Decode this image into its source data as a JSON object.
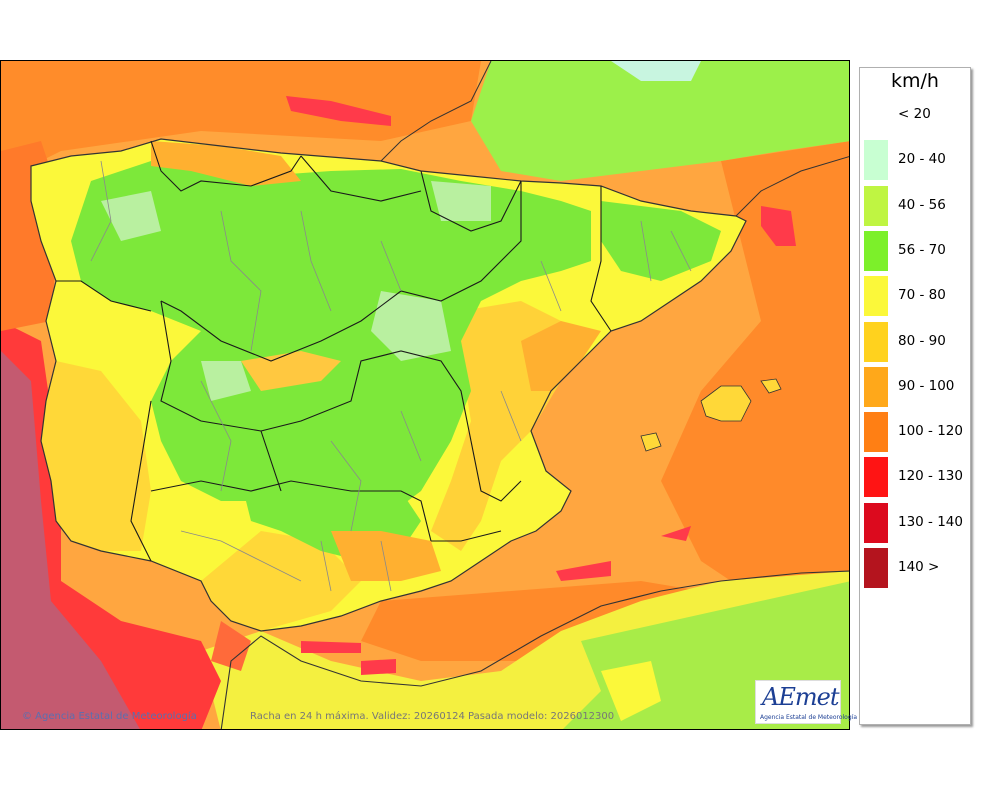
{
  "map": {
    "caption": "Racha en 24 h máxima. Validez: 20260124 Pasada modelo: 2026012300",
    "copyright": "© Agencia Estatal de Meteorología",
    "region": "Iberian Peninsula and Balearic Islands"
  },
  "legend": {
    "unit": "km/h",
    "items": [
      {
        "label": "< 20",
        "color": "#ffffff"
      },
      {
        "label": "20 - 40",
        "color": "#c8ffd2"
      },
      {
        "label": "40 - 56",
        "color": "#bff542"
      },
      {
        "label": "56 - 70",
        "color": "#7cf02a"
      },
      {
        "label": "70 - 80",
        "color": "#fbf83a"
      },
      {
        "label": "80 - 90",
        "color": "#ffd21e"
      },
      {
        "label": "90 - 100",
        "color": "#ffa81a"
      },
      {
        "label": "100 - 120",
        "color": "#ff7f14"
      },
      {
        "label": "120 - 130",
        "color": "#ff1414"
      },
      {
        "label": "130 - 140",
        "color": "#dc0a1e"
      },
      {
        "label": "140 >",
        "color": "#b4141e"
      }
    ]
  },
  "logo": {
    "text": "AEmet",
    "subtitle": "Agencia Estatal de Meteorología"
  }
}
